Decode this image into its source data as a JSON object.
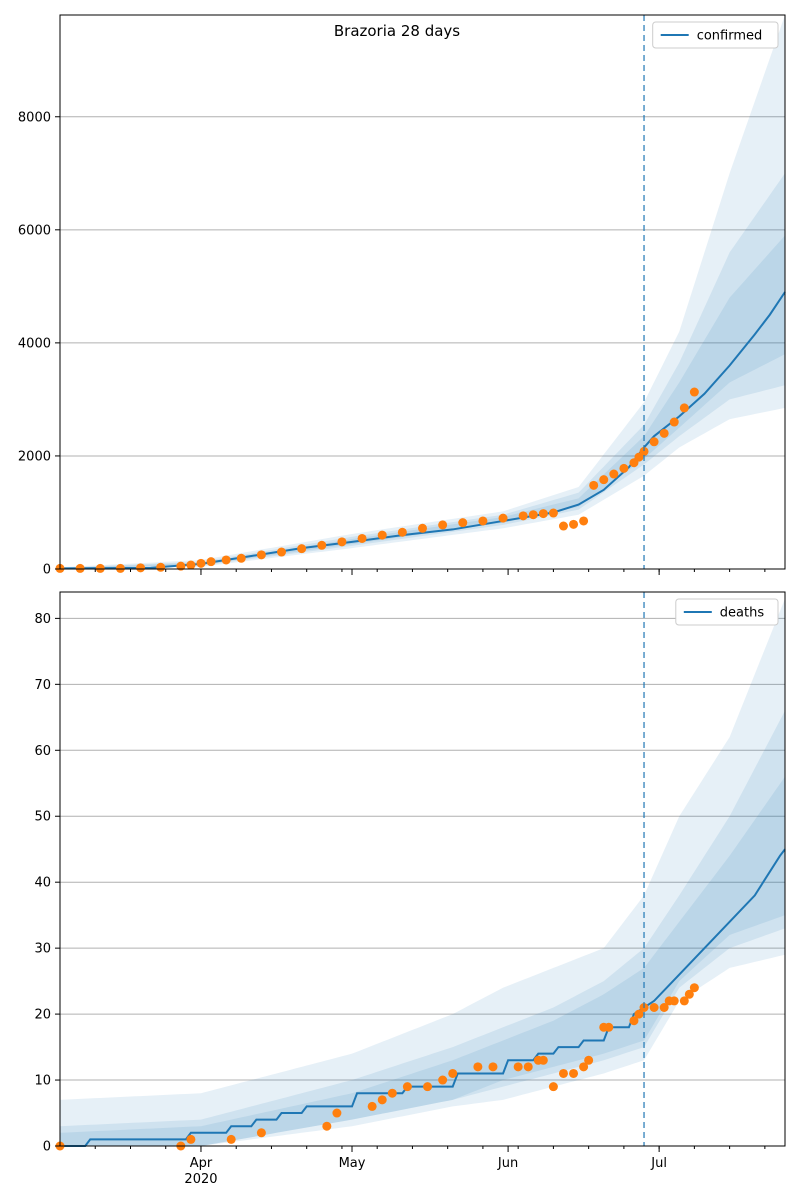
{
  "figure": {
    "title": "Brazoria 28 days"
  },
  "colors": {
    "model": "#1f77b4",
    "observed": "#ff7f0e",
    "band": "#1f77b4",
    "grid": "#b0b0b0",
    "vline": "#1f77b4"
  },
  "chart_data": [
    {
      "type": "line",
      "legend": "confirmed",
      "legend_position": "top-right",
      "x_ticks": [
        {
          "day": 30,
          "label": "Apr",
          "sublabel": "2020"
        },
        {
          "day": 60,
          "label": "May",
          "sublabel": ""
        },
        {
          "day": 91,
          "label": "Jun",
          "sublabel": ""
        },
        {
          "day": 121,
          "label": "Jul",
          "sublabel": ""
        }
      ],
      "xlim": [
        2,
        146
      ],
      "ylim": [
        0,
        9800
      ],
      "y_ticks": [
        0,
        2000,
        4000,
        6000,
        8000
      ],
      "grid": "horizontal",
      "forecast_start_day": 118,
      "model": {
        "x": [
          2,
          20,
          30,
          40,
          50,
          60,
          70,
          80,
          90,
          100,
          105,
          110,
          115,
          118,
          120,
          125,
          130,
          135,
          140,
          143,
          146
        ],
        "y": [
          10,
          20,
          90,
          230,
          370,
          480,
          600,
          700,
          850,
          1000,
          1140,
          1400,
          1800,
          2150,
          2350,
          2700,
          3100,
          3600,
          4150,
          4500,
          4900
        ]
      },
      "bands": [
        {
          "x": [
            2,
            30,
            60,
            90,
            105,
            118,
            125,
            135,
            146
          ],
          "lower": [
            0,
            40,
            370,
            720,
            960,
            1650,
            2150,
            2650,
            2850
          ],
          "upper": [
            30,
            160,
            620,
            1020,
            1450,
            2950,
            4200,
            7000,
            9800
          ]
        },
        {
          "x": [
            2,
            30,
            60,
            90,
            105,
            118,
            125,
            135,
            146
          ],
          "lower": [
            0,
            60,
            410,
            780,
            1050,
            1850,
            2350,
            3000,
            3250
          ],
          "upper": [
            20,
            130,
            570,
            960,
            1350,
            2550,
            3650,
            5600,
            7000
          ]
        },
        {
          "x": [
            2,
            30,
            60,
            90,
            105,
            118,
            125,
            135,
            146
          ],
          "lower": [
            0,
            75,
            440,
            820,
            1100,
            1950,
            2500,
            3300,
            3800
          ],
          "upper": [
            15,
            110,
            530,
            920,
            1250,
            2350,
            3300,
            4800,
            5900
          ]
        }
      ],
      "observed": {
        "x": [
          2,
          6,
          10,
          14,
          18,
          22,
          26,
          28,
          30,
          32,
          35,
          38,
          42,
          46,
          50,
          54,
          58,
          62,
          66,
          70,
          74,
          78,
          82,
          86,
          90,
          94,
          96,
          98,
          100,
          102,
          104,
          106,
          108,
          110,
          112,
          114,
          116,
          117,
          118,
          120,
          122,
          124,
          126,
          128
        ],
        "y": [
          10,
          10,
          10,
          10,
          20,
          30,
          50,
          70,
          100,
          130,
          160,
          190,
          250,
          300,
          360,
          420,
          480,
          540,
          600,
          650,
          720,
          780,
          820,
          850,
          900,
          940,
          960,
          980,
          990,
          760,
          790,
          850,
          1480,
          1580,
          1680,
          1780,
          1880,
          1980,
          2080,
          2250,
          2400,
          2600,
          2850,
          3130
        ]
      }
    },
    {
      "type": "line",
      "legend": "deaths",
      "legend_position": "top-right",
      "x_ticks": [
        {
          "day": 30,
          "label": "Apr",
          "sublabel": "2020"
        },
        {
          "day": 60,
          "label": "May",
          "sublabel": ""
        },
        {
          "day": 91,
          "label": "Jun",
          "sublabel": ""
        },
        {
          "day": 121,
          "label": "Jul",
          "sublabel": ""
        }
      ],
      "xlim": [
        2,
        146
      ],
      "ylim": [
        0,
        84
      ],
      "y_ticks": [
        0,
        10,
        20,
        30,
        40,
        50,
        60,
        70,
        80
      ],
      "grid": "horizontal",
      "forecast_start_day": 118,
      "model": {
        "x": [
          2,
          7,
          8,
          27,
          28,
          35,
          36,
          40,
          41,
          45,
          46,
          50,
          51,
          60,
          61,
          70,
          71,
          80,
          81,
          90,
          91,
          96,
          97,
          100,
          101,
          105,
          106,
          110,
          111,
          115,
          116,
          118,
          120,
          125,
          130,
          135,
          140,
          145,
          146
        ],
        "y": [
          0,
          0,
          1,
          1,
          2,
          2,
          3,
          3,
          4,
          4,
          5,
          5,
          6,
          6,
          8,
          8,
          9,
          9,
          11,
          11,
          13,
          13,
          14,
          14,
          15,
          15,
          16,
          16,
          18,
          18,
          20,
          21,
          22,
          26,
          30,
          34,
          38,
          44,
          45
        ]
      },
      "bands": [
        {
          "x": [
            2,
            30,
            60,
            80,
            90,
            100,
            110,
            118,
            125,
            135,
            146
          ],
          "lower": [
            0,
            0,
            3,
            6,
            7,
            9,
            11,
            13,
            22,
            27,
            29
          ],
          "upper": [
            7,
            8,
            14,
            20,
            24,
            27,
            30,
            38,
            50,
            62,
            83
          ]
        },
        {
          "x": [
            2,
            30,
            60,
            80,
            90,
            100,
            110,
            118,
            125,
            135,
            146
          ],
          "lower": [
            0,
            0,
            4,
            7,
            9,
            11,
            13,
            15,
            24,
            30,
            33
          ],
          "upper": [
            3,
            4,
            10,
            15,
            18,
            21,
            25,
            30,
            38,
            50,
            66
          ]
        },
        {
          "x": [
            2,
            30,
            60,
            80,
            90,
            100,
            110,
            118,
            125,
            135,
            146
          ],
          "lower": [
            0,
            0,
            4,
            7,
            10,
            12,
            14,
            16,
            25,
            32,
            35
          ],
          "upper": [
            2,
            3,
            8,
            13,
            16,
            19,
            23,
            27,
            34,
            44,
            56
          ]
        }
      ],
      "observed": {
        "x": [
          2,
          26,
          28,
          36,
          42,
          55,
          57,
          64,
          66,
          68,
          71,
          75,
          78,
          80,
          85,
          88,
          93,
          95,
          97,
          98,
          100,
          102,
          104,
          106,
          107,
          110,
          111,
          116,
          117,
          118,
          120,
          122,
          123,
          124,
          126,
          127,
          128
        ],
        "y": [
          0,
          0,
          1,
          1,
          2,
          3,
          5,
          6,
          7,
          8,
          9,
          9,
          10,
          11,
          12,
          12,
          12,
          12,
          13,
          13,
          9,
          11,
          11,
          12,
          13,
          18,
          18,
          19,
          20,
          21,
          21,
          21,
          22,
          22,
          22,
          23,
          24
        ]
      }
    }
  ]
}
